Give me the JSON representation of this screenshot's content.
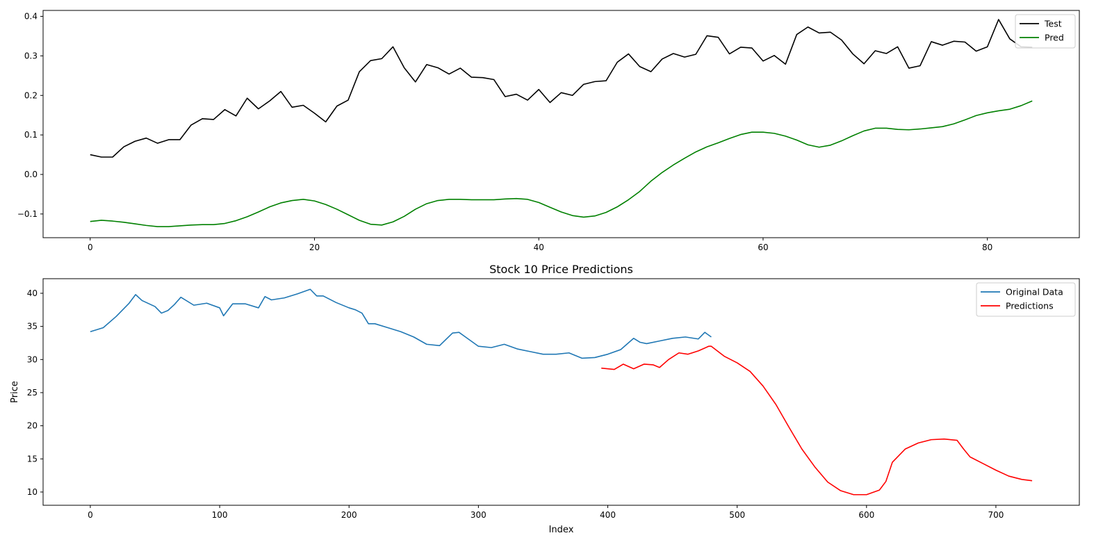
{
  "chart_data": [
    {
      "type": "line",
      "title": "",
      "xlabel": "",
      "ylabel": "",
      "xlim": [
        -4.2,
        88.2
      ],
      "ylim": [
        -0.16,
        0.415
      ],
      "xticks": [
        0,
        20,
        40,
        60,
        80
      ],
      "yticks": [
        -0.1,
        0.0,
        0.1,
        0.2,
        0.3,
        0.4
      ],
      "ytick_labels": [
        "−0.1",
        "0.0",
        "0.1",
        "0.2",
        "0.3",
        "0.4"
      ],
      "grid": false,
      "legend": "top-right",
      "series": [
        {
          "name": "Test",
          "color": "#000000",
          "x": [
            0,
            1,
            2,
            3,
            4,
            5,
            6,
            7,
            8,
            9,
            10,
            11,
            12,
            13,
            14,
            15,
            16,
            17,
            18,
            19,
            20,
            21,
            22,
            23,
            24,
            25,
            26,
            27,
            28,
            29,
            30,
            31,
            32,
            33,
            34,
            35,
            36,
            37,
            38,
            39,
            40,
            41,
            42,
            43,
            44,
            45,
            46,
            47,
            48,
            49,
            50,
            51,
            52,
            53,
            54,
            55,
            56,
            57,
            58,
            59,
            60,
            61,
            62,
            63,
            64,
            65,
            66,
            67,
            68,
            69,
            70,
            71,
            72,
            73,
            74,
            75,
            76,
            77,
            78,
            79,
            80,
            81,
            82,
            83,
            84
          ],
          "values": [
            0.05,
            0.044,
            0.044,
            0.07,
            0.084,
            0.092,
            0.079,
            0.088,
            0.088,
            0.125,
            0.141,
            0.139,
            0.164,
            0.148,
            0.193,
            0.166,
            0.186,
            0.21,
            0.17,
            0.175,
            0.155,
            0.133,
            0.173,
            0.188,
            0.26,
            0.288,
            0.293,
            0.323,
            0.27,
            0.234,
            0.278,
            0.27,
            0.254,
            0.269,
            0.246,
            0.245,
            0.24,
            0.197,
            0.203,
            0.188,
            0.215,
            0.182,
            0.207,
            0.2,
            0.228,
            0.235,
            0.237,
            0.284,
            0.305,
            0.273,
            0.26,
            0.292,
            0.306,
            0.297,
            0.304,
            0.351,
            0.347,
            0.305,
            0.322,
            0.32,
            0.287,
            0.301,
            0.279,
            0.354,
            0.373,
            0.358,
            0.36,
            0.34,
            0.305,
            0.28,
            0.313,
            0.306,
            0.323,
            0.269,
            0.275,
            0.336,
            0.327,
            0.337,
            0.335,
            0.312,
            0.323,
            0.392,
            0.343,
            0.323,
            0.322
          ]
        },
        {
          "name": "Pred",
          "color": "#008000",
          "x": [
            0,
            1,
            2,
            3,
            4,
            5,
            6,
            7,
            8,
            9,
            10,
            11,
            12,
            13,
            14,
            15,
            16,
            17,
            18,
            19,
            20,
            21,
            22,
            23,
            24,
            25,
            26,
            27,
            28,
            29,
            30,
            31,
            32,
            33,
            34,
            35,
            36,
            37,
            38,
            39,
            40,
            41,
            42,
            43,
            44,
            45,
            46,
            47,
            48,
            49,
            50,
            51,
            52,
            53,
            54,
            55,
            56,
            57,
            58,
            59,
            60,
            61,
            62,
            63,
            64,
            65,
            66,
            67,
            68,
            69,
            70,
            71,
            72,
            73,
            74,
            75,
            76,
            77,
            78,
            79,
            80,
            81,
            82,
            83,
            84
          ],
          "values": [
            -0.119,
            -0.116,
            -0.118,
            -0.121,
            -0.125,
            -0.129,
            -0.132,
            -0.132,
            -0.13,
            -0.128,
            -0.127,
            -0.127,
            -0.124,
            -0.117,
            -0.107,
            -0.095,
            -0.082,
            -0.072,
            -0.066,
            -0.063,
            -0.067,
            -0.076,
            -0.088,
            -0.102,
            -0.116,
            -0.126,
            -0.128,
            -0.12,
            -0.106,
            -0.088,
            -0.074,
            -0.066,
            -0.063,
            -0.063,
            -0.064,
            -0.064,
            -0.064,
            -0.062,
            -0.061,
            -0.063,
            -0.071,
            -0.083,
            -0.095,
            -0.104,
            -0.108,
            -0.105,
            -0.096,
            -0.082,
            -0.064,
            -0.043,
            -0.017,
            0.005,
            0.024,
            0.041,
            0.057,
            0.07,
            0.08,
            0.091,
            0.101,
            0.107,
            0.107,
            0.104,
            0.097,
            0.087,
            0.075,
            0.069,
            0.074,
            0.085,
            0.098,
            0.11,
            0.117,
            0.117,
            0.114,
            0.113,
            0.115,
            0.118,
            0.121,
            0.128,
            0.138,
            0.149,
            0.156,
            0.161,
            0.165,
            0.174,
            0.186
          ]
        }
      ]
    },
    {
      "type": "line",
      "title": "Stock 10 Price Predictions",
      "xlabel": "Index",
      "ylabel": "Price",
      "xlim": [
        -36.5,
        764.5
      ],
      "ylim": [
        8.0,
        42.2
      ],
      "xticks": [
        0,
        100,
        200,
        300,
        400,
        500,
        600,
        700
      ],
      "yticks": [
        10,
        15,
        20,
        25,
        30,
        35,
        40
      ],
      "grid": false,
      "legend": "top-right",
      "series": [
        {
          "name": "Original Data",
          "color": "#1f77b4",
          "x": [
            0,
            10,
            20,
            30,
            35,
            40,
            50,
            55,
            60,
            65,
            70,
            80,
            90,
            100,
            103,
            110,
            120,
            130,
            135,
            140,
            150,
            160,
            170,
            175,
            180,
            190,
            200,
            205,
            210,
            215,
            220,
            230,
            240,
            250,
            260,
            270,
            280,
            285,
            290,
            300,
            310,
            320,
            330,
            340,
            350,
            360,
            370,
            380,
            390,
            400,
            410,
            420,
            425,
            430,
            440,
            450,
            460,
            470,
            475,
            480
          ],
          "values": [
            34.2,
            34.8,
            36.5,
            38.5,
            39.8,
            38.9,
            38.0,
            37.0,
            37.4,
            38.3,
            39.4,
            38.2,
            38.5,
            37.8,
            36.6,
            38.4,
            38.4,
            37.8,
            39.5,
            39.0,
            39.3,
            39.9,
            40.6,
            39.6,
            39.6,
            38.6,
            37.8,
            37.5,
            37.0,
            35.4,
            35.4,
            34.8,
            34.2,
            33.4,
            32.3,
            32.1,
            34.0,
            34.1,
            33.4,
            32.0,
            31.8,
            32.3,
            31.6,
            31.2,
            30.8,
            30.8,
            31.0,
            30.2,
            30.3,
            30.8,
            31.5,
            33.2,
            32.6,
            32.4,
            32.8,
            33.2,
            33.4,
            33.1,
            34.1,
            33.4
          ]
        },
        {
          "name": "Predictions",
          "color": "#ff0000",
          "x": [
            395,
            405,
            412,
            420,
            428,
            435,
            440,
            447,
            455,
            462,
            470,
            478,
            480,
            490,
            500,
            510,
            520,
            530,
            540,
            550,
            560,
            570,
            580,
            590,
            600,
            610,
            615,
            620,
            630,
            640,
            650,
            660,
            670,
            675,
            680,
            690,
            700,
            710,
            720,
            728
          ],
          "values": [
            28.7,
            28.5,
            29.3,
            28.6,
            29.3,
            29.2,
            28.8,
            30.0,
            31.0,
            30.8,
            31.3,
            32.0,
            32.0,
            30.5,
            29.5,
            28.2,
            26.0,
            23.2,
            19.8,
            16.5,
            13.8,
            11.5,
            10.2,
            9.6,
            9.6,
            10.3,
            11.6,
            14.5,
            16.5,
            17.4,
            17.9,
            18.0,
            17.8,
            16.5,
            15.3,
            14.3,
            13.3,
            12.4,
            11.9,
            11.7
          ]
        }
      ]
    }
  ]
}
